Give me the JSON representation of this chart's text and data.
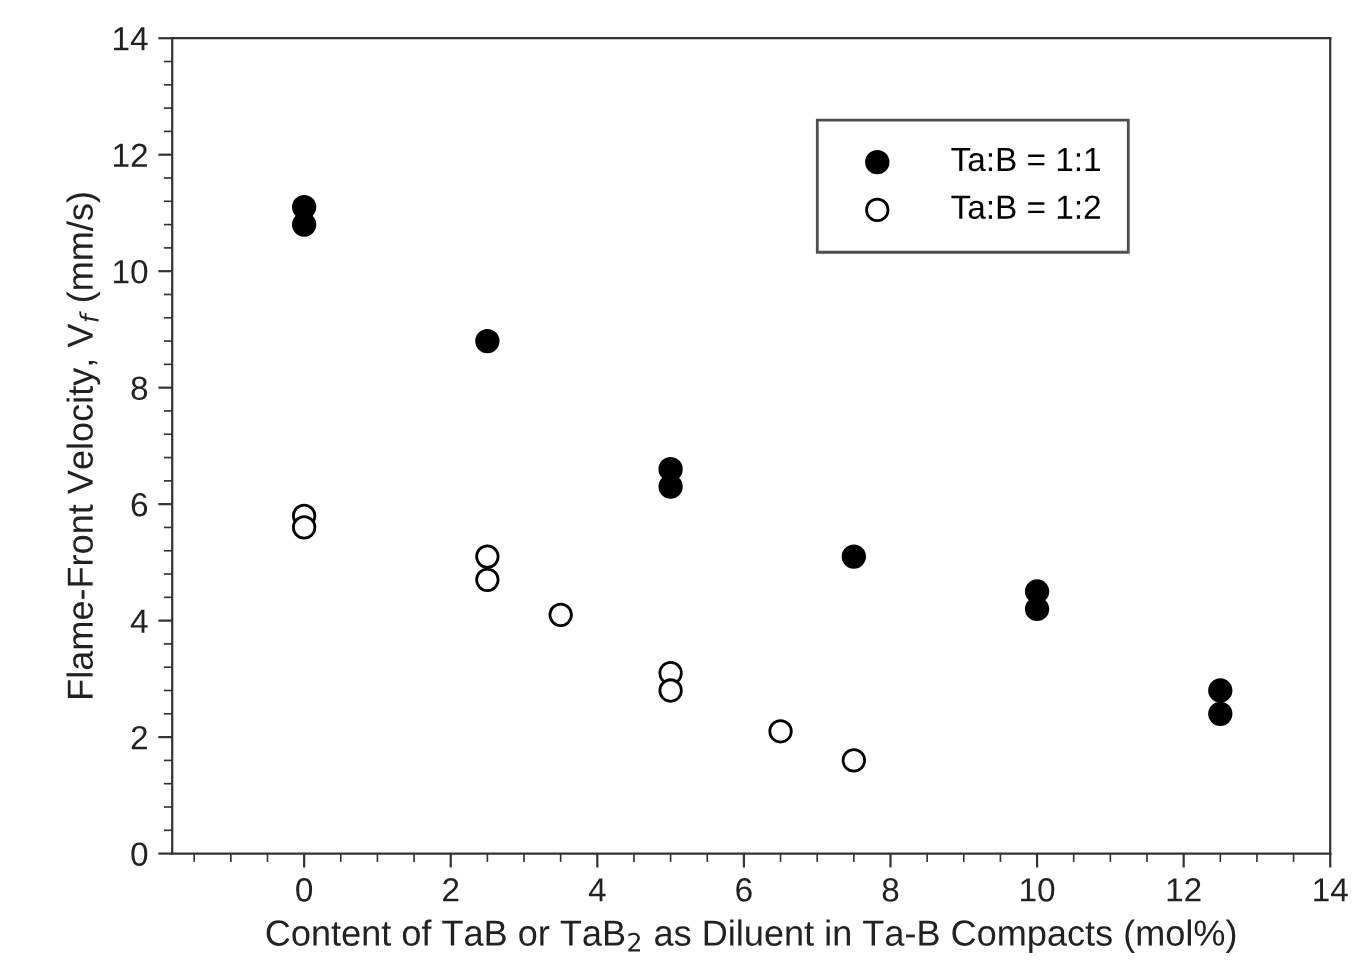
{
  "chart_data": {
    "type": "scatter",
    "xlabel": "Content of TaB or TaB$_{2}$ as Diluent in Ta-B Compacts (mol%)",
    "ylabel": "Flame-Front Velocity, V$_{f}$ (mm/s)",
    "series": [
      {
        "name": "Ta:B = 1:1",
        "color": "#000000",
        "x": [
          0,
          0,
          2.5,
          5,
          5,
          7.5,
          10,
          10,
          12.5,
          12.5
        ],
        "values": [
          11.1,
          10.8,
          8.8,
          6.6,
          6.3,
          5.1,
          4.5,
          4.2,
          2.8,
          2.4
        ]
      },
      {
        "name": "Ta:B = 1:2",
        "color": "#000000",
        "x": [
          0,
          0,
          2.5,
          2.5,
          3.5,
          5,
          5,
          6.5,
          7.5
        ],
        "values": [
          5.8,
          5.6,
          5.1,
          4.7,
          4.1,
          3.1,
          2.8,
          2.1,
          1.6
        ]
      }
    ],
    "xlim": [
      -1.8,
      14
    ],
    "xticks": [
      {
        "value": -1.5,
        "label": null
      },
      {
        "value": -1,
        "label": null
      },
      {
        "value": -0.5,
        "label": null
      },
      0,
      {
        "value": 0.5,
        "label": null
      },
      {
        "value": 1,
        "label": null
      },
      {
        "value": 1.5,
        "label": null
      },
      2,
      {
        "value": 2.5,
        "label": null
      },
      {
        "value": 3,
        "label": null
      },
      {
        "value": 3.5,
        "label": null
      },
      4,
      {
        "value": 4.5,
        "label": null
      },
      {
        "value": 5,
        "label": null
      },
      {
        "value": 5.5,
        "label": null
      },
      6,
      {
        "value": 6.5,
        "label": null
      },
      {
        "value": 7,
        "label": null
      },
      {
        "value": 7.5,
        "label": null
      },
      8,
      {
        "value": 8.5,
        "label": null
      },
      {
        "value": 9,
        "label": null
      },
      {
        "value": 9.5,
        "label": null
      },
      10,
      {
        "value": 10.5,
        "label": null
      },
      {
        "value": 11,
        "label": null
      },
      {
        "value": 11.5,
        "label": null
      },
      12,
      {
        "value": 12.5,
        "label": null
      },
      {
        "value": 13,
        "label": null
      },
      {
        "value": 13.5,
        "label": null
      },
      14
    ],
    "ylim": [
      0,
      14
    ],
    "yticks": [
      0,
      {
        "value": 0.4,
        "label": null
      },
      {
        "value": 0.8,
        "label": null
      },
      {
        "value": 1.2,
        "label": null
      },
      {
        "value": 1.6,
        "label": null
      },
      2,
      {
        "value": 2.4,
        "label": null
      },
      {
        "value": 2.8,
        "label": null
      },
      {
        "value": 3.2,
        "label": null
      },
      {
        "value": 3.6,
        "label": null
      },
      4,
      {
        "value": 4.4,
        "label": null
      },
      {
        "value": 4.8,
        "label": null
      },
      {
        "value": 5.2,
        "label": null
      },
      {
        "value": 5.6,
        "label": null
      },
      6,
      {
        "value": 6.4,
        "label": null
      },
      {
        "value": 6.8,
        "label": null
      },
      {
        "value": 7.2,
        "label": null
      },
      {
        "value": 7.6,
        "label": null
      },
      8,
      {
        "value": 8.4,
        "label": null
      },
      {
        "value": 8.8,
        "label": null
      },
      {
        "value": 9.2,
        "label": null
      },
      {
        "value": 9.6,
        "label": null
      },
      10,
      {
        "value": 10.4,
        "label": null
      },
      {
        "value": 10.8,
        "label": null
      },
      {
        "value": 11.2,
        "label": null
      },
      {
        "value": 11.6,
        "label": null
      },
      12,
      {
        "value": 12.4,
        "label": null
      },
      {
        "value": 12.8,
        "label": null
      },
      {
        "value": 13.2,
        "label": null
      },
      {
        "value": 13.6,
        "label": null
      },
      14
    ],
    "marker": "circle",
    "grid": false,
    "legend": "top right"
  }
}
